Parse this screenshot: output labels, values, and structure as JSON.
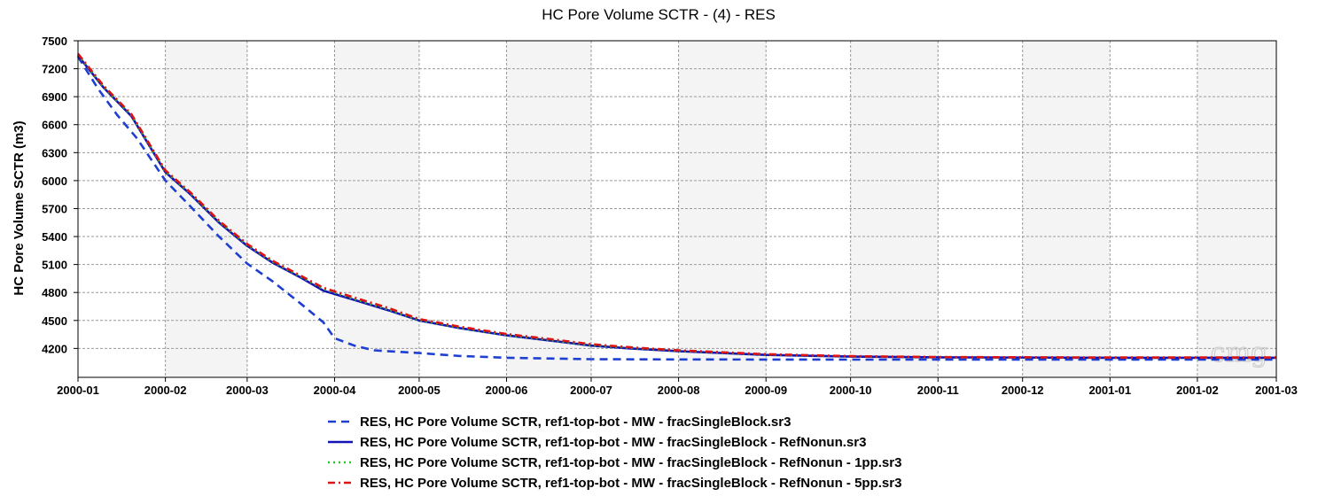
{
  "chart_data": {
    "type": "line",
    "title": "HC Pore Volume SCTR - (4) - RES",
    "xlabel": "",
    "ylabel": "HC Pore Volume SCTR (m3)",
    "watermark": "cmg",
    "x_ticks": [
      "2000-01",
      "2000-02",
      "2000-03",
      "2000-04",
      "2000-05",
      "2000-06",
      "2000-07",
      "2000-08",
      "2000-09",
      "2000-10",
      "2000-11",
      "2000-12",
      "2001-01",
      "2001-02",
      "2001-03"
    ],
    "x_range": [
      "2000-01-01",
      "2001-03-01"
    ],
    "y_ticks": [
      4200,
      4500,
      4800,
      5100,
      5400,
      5700,
      6000,
      6300,
      6600,
      6900,
      7200,
      7500
    ],
    "ylim": [
      3890,
      7500
    ],
    "grid": true,
    "alternating_column_shading": true,
    "legend_position": "bottom",
    "series": [
      {
        "name": "RES, HC Pore Volume SCTR, ref1-top-bot - MW - fracSingleBlock.sr3",
        "color": "#1f3fd1",
        "style": "dashed",
        "points": [
          [
            "2000-01-01",
            7330
          ],
          [
            "2000-01-08",
            6990
          ],
          [
            "2000-01-15",
            6700
          ],
          [
            "2000-01-22",
            6450
          ],
          [
            "2000-02-01",
            6000
          ],
          [
            "2000-02-10",
            5720
          ],
          [
            "2000-02-20",
            5400
          ],
          [
            "2000-03-01",
            5110
          ],
          [
            "2000-03-10",
            4920
          ],
          [
            "2000-03-20",
            4680
          ],
          [
            "2000-03-28",
            4480
          ],
          [
            "2000-04-01",
            4310
          ],
          [
            "2000-04-08",
            4230
          ],
          [
            "2000-04-15",
            4180
          ],
          [
            "2000-05-01",
            4150
          ],
          [
            "2000-05-15",
            4120
          ],
          [
            "2000-06-01",
            4100
          ],
          [
            "2000-07-01",
            4085
          ],
          [
            "2000-08-01",
            4082
          ],
          [
            "2000-10-01",
            4080
          ],
          [
            "2001-03-01",
            4080
          ]
        ]
      },
      {
        "name": "RES, HC Pore Volume SCTR, ref1-top-bot - MW - fracSingleBlock - RefNonun.sr3",
        "color": "#1414b4",
        "style": "solid",
        "points": [
          [
            "2000-01-01",
            7340
          ],
          [
            "2000-01-10",
            7000
          ],
          [
            "2000-01-20",
            6690
          ],
          [
            "2000-02-01",
            6090
          ],
          [
            "2000-02-10",
            5850
          ],
          [
            "2000-02-20",
            5550
          ],
          [
            "2000-03-01",
            5300
          ],
          [
            "2000-03-10",
            5120
          ],
          [
            "2000-03-20",
            4960
          ],
          [
            "2000-03-28",
            4820
          ],
          [
            "2000-04-08",
            4720
          ],
          [
            "2000-04-20",
            4610
          ],
          [
            "2000-05-01",
            4500
          ],
          [
            "2000-05-15",
            4420
          ],
          [
            "2000-06-01",
            4340
          ],
          [
            "2000-06-15",
            4290
          ],
          [
            "2000-07-01",
            4230
          ],
          [
            "2000-07-15",
            4200
          ],
          [
            "2000-08-01",
            4170
          ],
          [
            "2000-09-01",
            4130
          ],
          [
            "2000-10-01",
            4112
          ],
          [
            "2000-11-01",
            4105
          ],
          [
            "2001-01-01",
            4100
          ],
          [
            "2001-03-01",
            4100
          ]
        ]
      },
      {
        "name": "RES, HC Pore Volume SCTR, ref1-top-bot - MW - fracSingleBlock - RefNonun - 1pp.sr3",
        "color": "#28c828",
        "style": "dotted",
        "points": [
          [
            "2000-01-01",
            7350
          ],
          [
            "2000-01-10",
            7010
          ],
          [
            "2000-01-20",
            6700
          ],
          [
            "2000-02-01",
            6100
          ],
          [
            "2000-02-10",
            5860
          ],
          [
            "2000-02-20",
            5560
          ],
          [
            "2000-03-01",
            5310
          ],
          [
            "2000-03-10",
            5130
          ],
          [
            "2000-03-20",
            4970
          ],
          [
            "2000-03-28",
            4840
          ],
          [
            "2000-04-08",
            4730
          ],
          [
            "2000-04-20",
            4620
          ],
          [
            "2000-05-01",
            4505
          ],
          [
            "2000-05-15",
            4425
          ],
          [
            "2000-06-01",
            4345
          ],
          [
            "2000-06-15",
            4295
          ],
          [
            "2000-07-01",
            4235
          ],
          [
            "2000-07-15",
            4205
          ],
          [
            "2000-08-01",
            4175
          ],
          [
            "2000-09-01",
            4135
          ],
          [
            "2000-10-01",
            4115
          ],
          [
            "2000-11-01",
            4107
          ],
          [
            "2001-01-01",
            4102
          ],
          [
            "2001-03-01",
            4102
          ]
        ]
      },
      {
        "name": "RES, HC Pore Volume SCTR, ref1-top-bot - MW - fracSingleBlock - RefNonun - 5pp.sr3",
        "color": "#dc1414",
        "style": "dashdot",
        "points": [
          [
            "2000-01-01",
            7360
          ],
          [
            "2000-01-10",
            7020
          ],
          [
            "2000-01-20",
            6710
          ],
          [
            "2000-02-01",
            6110
          ],
          [
            "2000-02-10",
            5870
          ],
          [
            "2000-02-20",
            5570
          ],
          [
            "2000-03-01",
            5320
          ],
          [
            "2000-03-10",
            5140
          ],
          [
            "2000-03-20",
            4980
          ],
          [
            "2000-03-28",
            4850
          ],
          [
            "2000-04-08",
            4745
          ],
          [
            "2000-04-20",
            4635
          ],
          [
            "2000-05-01",
            4515
          ],
          [
            "2000-05-15",
            4435
          ],
          [
            "2000-06-01",
            4355
          ],
          [
            "2000-06-15",
            4305
          ],
          [
            "2000-07-01",
            4245
          ],
          [
            "2000-07-15",
            4212
          ],
          [
            "2000-08-01",
            4180
          ],
          [
            "2000-09-01",
            4138
          ],
          [
            "2000-10-01",
            4117
          ],
          [
            "2000-11-01",
            4108
          ],
          [
            "2001-01-01",
            4103
          ],
          [
            "2001-03-01",
            4103
          ]
        ]
      }
    ]
  }
}
